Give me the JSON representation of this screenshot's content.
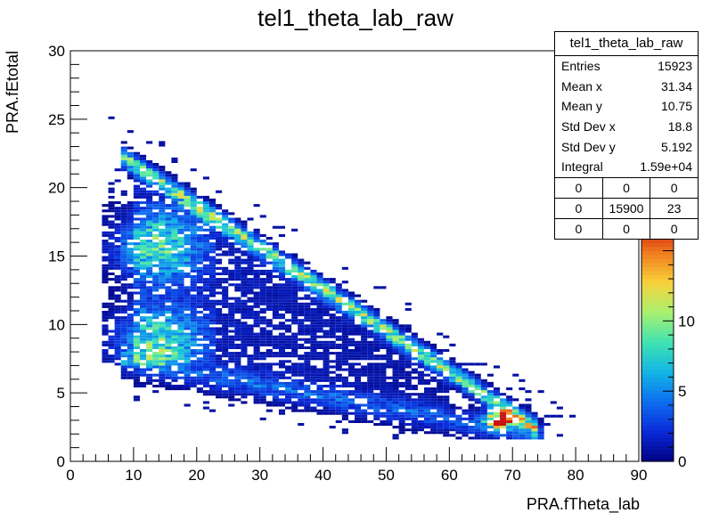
{
  "chart_data": {
    "type": "heatmap",
    "title": "tel1_theta_lab_raw",
    "xlabel": "PRA.fTheta_lab",
    "ylabel": "PRA.fEtotal",
    "xlim": [
      0,
      90
    ],
    "ylim": [
      0,
      30
    ],
    "x_ticks": [
      "0",
      "10",
      "20",
      "30",
      "40",
      "50",
      "60",
      "70",
      "80",
      "90"
    ],
    "y_ticks": [
      "0",
      "5",
      "10",
      "15",
      "20",
      "25",
      "30"
    ],
    "z_range": [
      0,
      17
    ],
    "z_ticks": [
      "0",
      "5",
      "10"
    ],
    "colormap": [
      "#000080",
      "#0a2ad8",
      "#0d6df0",
      "#12b5e5",
      "#3fe3b0",
      "#a8f070",
      "#f7d23a",
      "#f07c1e",
      "#c81010"
    ],
    "bins_x": 90,
    "bins_y": 150,
    "density_components": [
      {
        "desc": "upper band",
        "x0": 10,
        "y0": 21.7,
        "x1": 73,
        "y1": 2.6,
        "width_e": 0.45,
        "peak": 9,
        "x_from": 8,
        "x_to": 74
      },
      {
        "desc": "dense cluster",
        "x_center": 14,
        "x_halfwidth": 7,
        "y_from": 7,
        "y_to": 19,
        "peak": 7
      },
      {
        "desc": "lower edge band",
        "x0": 8,
        "y0": 7.2,
        "x1": 75,
        "y1": 1.8,
        "width_e": 0.6,
        "peak": 3
      },
      {
        "desc": "diffuse region",
        "x_from": 10,
        "x_to": 60,
        "peak": 1.4
      },
      {
        "desc": "hot spot",
        "x": 68,
        "y": 3.0,
        "peak": 17
      }
    ],
    "stats_box": {
      "title": "tel1_theta_lab_raw",
      "rows": [
        {
          "label": "Entries",
          "value": "15923"
        },
        {
          "label": "Mean x",
          "value": "31.34"
        },
        {
          "label": "Mean y",
          "value": "10.75"
        },
        {
          "label": "Std Dev x",
          "value": "18.8"
        },
        {
          "label": "Std Dev y",
          "value": "5.192"
        },
        {
          "label": "Integral",
          "value": "1.59e+04"
        }
      ],
      "overflow_grid": [
        [
          "0",
          "0",
          "0"
        ],
        [
          "0",
          "15900",
          "23"
        ],
        [
          "0",
          "0",
          "0"
        ]
      ]
    }
  }
}
